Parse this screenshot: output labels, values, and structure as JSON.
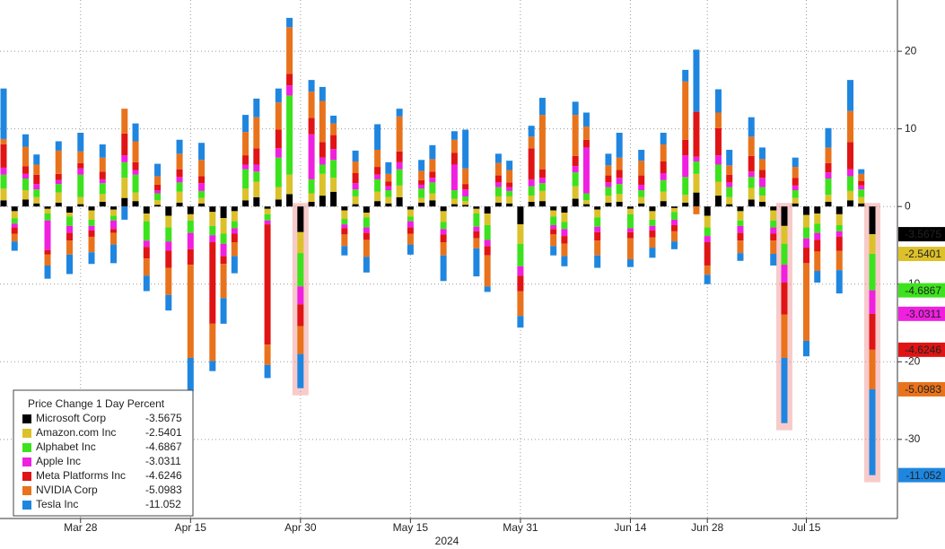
{
  "chart_data": {
    "type": "stacked-bar",
    "legend_title": "Price Change 1 Day Percent",
    "xlabel": "2024",
    "categories": [
      null,
      null,
      null,
      null,
      null,
      null,
      null,
      "Mar 28",
      null,
      null,
      null,
      null,
      null,
      null,
      null,
      null,
      null,
      "Apr 15",
      null,
      null,
      null,
      null,
      null,
      null,
      null,
      null,
      null,
      "Apr 30",
      null,
      null,
      null,
      null,
      null,
      null,
      null,
      null,
      null,
      "May 15",
      null,
      null,
      null,
      null,
      null,
      null,
      null,
      null,
      null,
      "May 31",
      null,
      null,
      null,
      null,
      null,
      null,
      null,
      null,
      null,
      "Jun 14",
      null,
      null,
      null,
      null,
      null,
      null,
      "Jun 28",
      null,
      null,
      null,
      null,
      null,
      null,
      null,
      null,
      "Jul 15",
      null,
      null,
      null,
      null,
      null,
      null
    ],
    "ylim": [
      -42.5,
      26.6
    ],
    "yticks": [
      20,
      10,
      0,
      -10,
      -20,
      -30
    ],
    "grid": true,
    "legend": "lower left",
    "highlight": [
      27,
      71,
      79
    ],
    "series": [
      {
        "name": "Microsoft Corp",
        "color": "#000000",
        "values": [
          0.8,
          -0.6,
          0.9,
          0.4,
          -0.3,
          0.5,
          -0.8,
          0.3,
          -0.5,
          0.6,
          -0.4,
          1.1,
          0.7,
          -0.9,
          0.2,
          -1.2,
          0.5,
          -1.0,
          0.4,
          -0.7,
          -1.5,
          -0.6,
          0.8,
          1.2,
          -0.3,
          0.9,
          1.6,
          -3.3,
          0.6,
          1.4,
          1.9,
          -0.5,
          0.3,
          -0.8,
          0.7,
          0.4,
          1.2,
          -0.4,
          0.5,
          0.8,
          -0.6,
          0.3,
          0.2,
          -0.3,
          -0.9,
          0.5,
          0.4,
          -2.3,
          0.6,
          0.7,
          -0.5,
          -0.8,
          1.0,
          0.3,
          -0.4,
          0.5,
          0.6,
          -0.3,
          0.4,
          -0.6,
          0.7,
          -0.2,
          0.5,
          1.8,
          -1.2,
          1.4,
          0.3,
          -0.6,
          0.9,
          0.6,
          -0.5,
          -2.5,
          0.4,
          -1.1,
          -0.9,
          0.6,
          -1.0,
          0.8,
          0.4,
          -3.5675
        ]
      },
      {
        "name": "Amazon.com Inc",
        "color": "#dcc12a",
        "values": [
          1.5,
          -0.9,
          1.2,
          0.8,
          -0.6,
          1.3,
          -0.5,
          0.9,
          -1.2,
          1.0,
          -0.8,
          2.6,
          1.1,
          -1.0,
          0.6,
          -1.5,
          1.4,
          -0.8,
          0.7,
          -1.8,
          -2.0,
          -1.3,
          1.5,
          2.0,
          -0.7,
          1.6,
          2.5,
          -2.7,
          1.1,
          2.8,
          1.8,
          -1.1,
          1.0,
          -0.6,
          1.2,
          0.8,
          1.5,
          -0.9,
          0.6,
          0.9,
          -1.4,
          0.7,
          0.5,
          -0.6,
          -1.5,
          0.8,
          0.9,
          -2.5,
          0.8,
          1.3,
          -0.8,
          -1.2,
          1.6,
          0.5,
          -1.0,
          0.9,
          1.0,
          -0.7,
          0.8,
          -1.1,
          1.2,
          -0.5,
          1.0,
          2.4,
          -1.5,
          1.8,
          0.9,
          -1.2,
          1.5,
          0.8,
          -1.3,
          -2.3,
          0.7,
          -1.6,
          -1.3,
          0.9,
          -1.4,
          1.2,
          0.8,
          -2.5401
        ]
      },
      {
        "name": "Alphabet Inc",
        "color": "#3de21e",
        "values": [
          1.8,
          -0.7,
          1.5,
          1.0,
          -0.9,
          1.1,
          -1.2,
          2.9,
          -0.8,
          1.4,
          -0.6,
          2.0,
          2.3,
          -2.5,
          0.9,
          -1.8,
          1.2,
          -1.6,
          0.9,
          -1.2,
          -1.3,
          -0.9,
          2.5,
          1.3,
          -0.8,
          3.8,
          10.2,
          -4.3,
          1.8,
          1.2,
          2.3,
          -0.7,
          0.9,
          -1.3,
          1.6,
          0.9,
          2.1,
          -0.6,
          1.2,
          1.4,
          -0.9,
          1.1,
          0.6,
          -1.7,
          -1.9,
          1.2,
          0.7,
          -2.9,
          1.2,
          1.0,
          -1.1,
          -0.9,
          1.8,
          0.9,
          -1.2,
          1.1,
          1.3,
          -1.8,
          0.9,
          -0.8,
          1.5,
          -1.0,
          2.3,
          1.6,
          -1.1,
          2.2,
          1.3,
          -0.7,
          1.4,
          1.1,
          -0.9,
          -2.7,
          1.0,
          -1.4,
          -1.2,
          2.1,
          -0.8,
          1.9,
          1.0,
          -4.6867
        ]
      },
      {
        "name": "Apple Inc",
        "color": "#f020e0",
        "values": [
          0.9,
          -0.5,
          0.6,
          0.7,
          -3.8,
          0.5,
          -0.9,
          0.8,
          -0.6,
          0.5,
          -1.1,
          0.9,
          0.6,
          -0.8,
          0.4,
          -1.2,
          0.7,
          -2.1,
          1.0,
          -0.9,
          -1.6,
          -0.7,
          0.6,
          0.9,
          -0.5,
          1.2,
          1.3,
          -2.3,
          5.8,
          0.9,
          1.4,
          -0.5,
          0.8,
          -0.7,
          0.6,
          0.5,
          0.9,
          -0.8,
          0.5,
          0.6,
          -0.7,
          3.3,
          0.9,
          -0.6,
          -0.8,
          0.6,
          0.5,
          -1.2,
          0.9,
          0.7,
          -0.5,
          -0.9,
          0.8,
          5.9,
          -0.7,
          0.6,
          0.8,
          -0.5,
          0.7,
          -0.6,
          0.9,
          -0.7,
          2.8,
          0.6,
          -0.8,
          1.2,
          0.6,
          -0.9,
          0.7,
          1.2,
          -0.8,
          -2.3,
          0.6,
          -1.2,
          -0.9,
          0.8,
          -0.7,
          0.9,
          0.5,
          -3.0311
        ]
      },
      {
        "name": "Meta Platforms Inc",
        "color": "#e01414",
        "values": [
          3.0,
          -0.8,
          1.0,
          1.2,
          -0.6,
          0.8,
          -1.0,
          0.7,
          -0.8,
          1.0,
          -0.5,
          2.8,
          1.0,
          -1.5,
          0.7,
          -2.2,
          1.0,
          -2.0,
          0.9,
          -10.5,
          -1.0,
          -1.1,
          1.2,
          2.1,
          -15.5,
          2.4,
          1.5,
          -2.8,
          2.1,
          2.0,
          1.8,
          -0.8,
          1.3,
          -0.9,
          1.0,
          0.6,
          1.4,
          -0.8,
          0.6,
          0.8,
          -1.0,
          1.5,
          0.7,
          -0.9,
          -1.2,
          0.9,
          0.6,
          -2.0,
          4.0,
          1.1,
          -0.7,
          -1.0,
          1.3,
          1.0,
          -1.1,
          0.9,
          1.0,
          -0.8,
          1.2,
          -0.9,
          1.5,
          -0.8,
          2.0,
          5.8,
          -3.0,
          3.5,
          1.0,
          -1.0,
          2.0,
          1.0,
          -0.9,
          -4.1,
          1.0,
          -2.0,
          -1.5,
          1.2,
          -1.8,
          3.5,
          0.6,
          -4.6246
        ]
      },
      {
        "name": "NVIDIA Corp",
        "color": "#e8731c",
        "values": [
          0.7,
          -1.0,
          2.5,
          1.3,
          -1.4,
          3.0,
          -1.8,
          1.5,
          -2.0,
          1.8,
          -1.5,
          3.2,
          2.7,
          -2.2,
          1.1,
          -3.5,
          2.0,
          -12.0,
          2.1,
          -4.8,
          -4.4,
          -1.8,
          3.0,
          4.0,
          -2.6,
          3.5,
          6.0,
          -3.6,
          3.4,
          5.3,
          1.5,
          -1.5,
          1.5,
          -2.2,
          2.2,
          1.0,
          4.5,
          -1.4,
          1.2,
          1.6,
          -1.7,
          1.7,
          2.0,
          -1.3,
          -4.0,
          1.6,
          1.6,
          -3.2,
          1.5,
          7.0,
          -1.5,
          -1.6,
          5.3,
          1.7,
          -1.9,
          1.3,
          1.6,
          -2.7,
          1.9,
          -1.3,
          2.2,
          -1.3,
          7.5,
          -1.0,
          -1.2,
          2.0,
          1.2,
          -1.6,
          2.5,
          1.4,
          -1.7,
          -5.6,
          1.4,
          -10.0,
          -2.5,
          2.0,
          -2.5,
          4.0,
          0.9,
          -5.0983
        ]
      },
      {
        "name": "Tesla Inc",
        "color": "#1f86e0",
        "values": [
          6.5,
          -1.2,
          1.6,
          1.3,
          -1.7,
          1.2,
          -2.5,
          2.4,
          -1.5,
          1.7,
          -2.4,
          -1.7,
          2.3,
          -2.0,
          1.6,
          -2.0,
          1.8,
          -4.3,
          2.2,
          -1.3,
          -3.3,
          -2.2,
          2.2,
          2.4,
          -1.7,
          1.8,
          1.2,
          -4.4,
          1.5,
          1.8,
          1.0,
          -1.2,
          1.4,
          -2.0,
          3.3,
          1.5,
          1.0,
          -1.3,
          1.4,
          1.8,
          -3.3,
          1.1,
          5.0,
          -3.6,
          -0.7,
          1.2,
          1.2,
          -1.5,
          1.4,
          2.2,
          -1.2,
          -1.3,
          1.7,
          1.8,
          -1.6,
          1.5,
          3.2,
          -1.0,
          1.4,
          -1.3,
          1.5,
          -1.0,
          1.5,
          8.0,
          -1.2,
          3.0,
          2.0,
          -1.0,
          2.5,
          1.5,
          -1.5,
          -8.4,
          1.2,
          -2.0,
          -1.5,
          2.5,
          -3.0,
          4.0,
          0.6,
          -11.052
        ]
      }
    ]
  }
}
